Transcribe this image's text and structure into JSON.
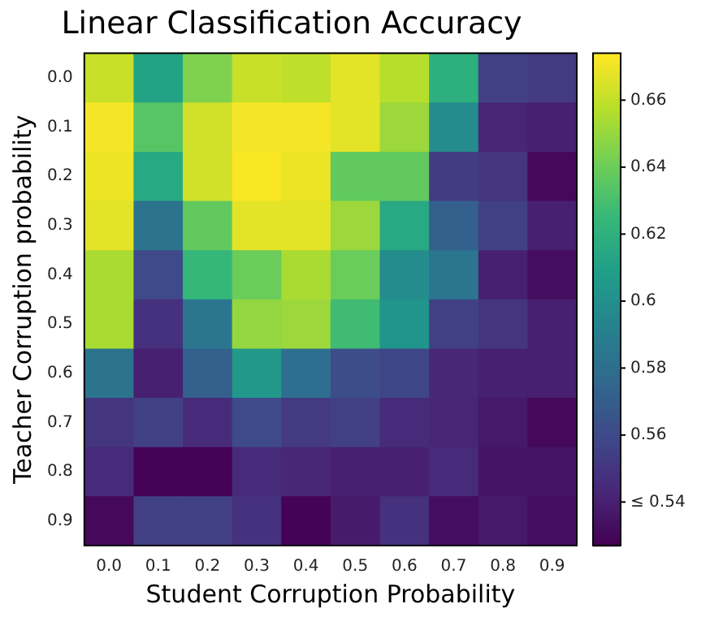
{
  "chart_data": {
    "type": "heatmap",
    "title": "Linear Classification Accuracy",
    "xlabel": "Student Corruption Probability",
    "ylabel": "Teacher Corruption probability",
    "categories": [
      "0.0",
      "0.1",
      "0.2",
      "0.3",
      "0.4",
      "0.5",
      "0.6",
      "0.7",
      "0.8",
      "0.9"
    ],
    "y_categories": [
      "0.0",
      "0.1",
      "0.2",
      "0.3",
      "0.4",
      "0.5",
      "0.6",
      "0.7",
      "0.8",
      "0.9"
    ],
    "cells": [
      [
        0.662,
        0.612,
        0.645,
        0.662,
        0.66,
        0.668,
        0.658,
        0.62,
        0.555,
        0.552
      ],
      [
        0.672,
        0.635,
        0.664,
        0.672,
        0.672,
        0.668,
        0.652,
        0.598,
        0.542,
        0.54
      ],
      [
        0.67,
        0.615,
        0.664,
        0.673,
        0.67,
        0.638,
        0.638,
        0.553,
        0.55,
        0.53
      ],
      [
        0.668,
        0.583,
        0.638,
        0.668,
        0.668,
        0.652,
        0.615,
        0.572,
        0.555,
        0.54
      ],
      [
        0.655,
        0.56,
        0.625,
        0.64,
        0.655,
        0.64,
        0.598,
        0.585,
        0.54,
        0.532
      ],
      [
        0.655,
        0.548,
        0.585,
        0.65,
        0.652,
        0.628,
        0.603,
        0.555,
        0.55,
        0.54
      ],
      [
        0.583,
        0.54,
        0.572,
        0.605,
        0.58,
        0.562,
        0.558,
        0.543,
        0.54,
        0.54
      ],
      [
        0.55,
        0.555,
        0.545,
        0.56,
        0.552,
        0.555,
        0.545,
        0.542,
        0.537,
        0.53
      ],
      [
        0.545,
        0.528,
        0.528,
        0.545,
        0.543,
        0.54,
        0.54,
        0.545,
        0.535,
        0.535
      ],
      [
        0.53,
        0.555,
        0.555,
        0.548,
        0.528,
        0.538,
        0.548,
        0.532,
        0.537,
        0.532
      ]
    ],
    "clim": [
      0.527,
      0.674
    ],
    "cticks": [
      {
        "value": 0.54,
        "label": "≤ 0.54"
      },
      0.56,
      0.58,
      0.6,
      0.62,
      0.64,
      0.66
    ]
  }
}
